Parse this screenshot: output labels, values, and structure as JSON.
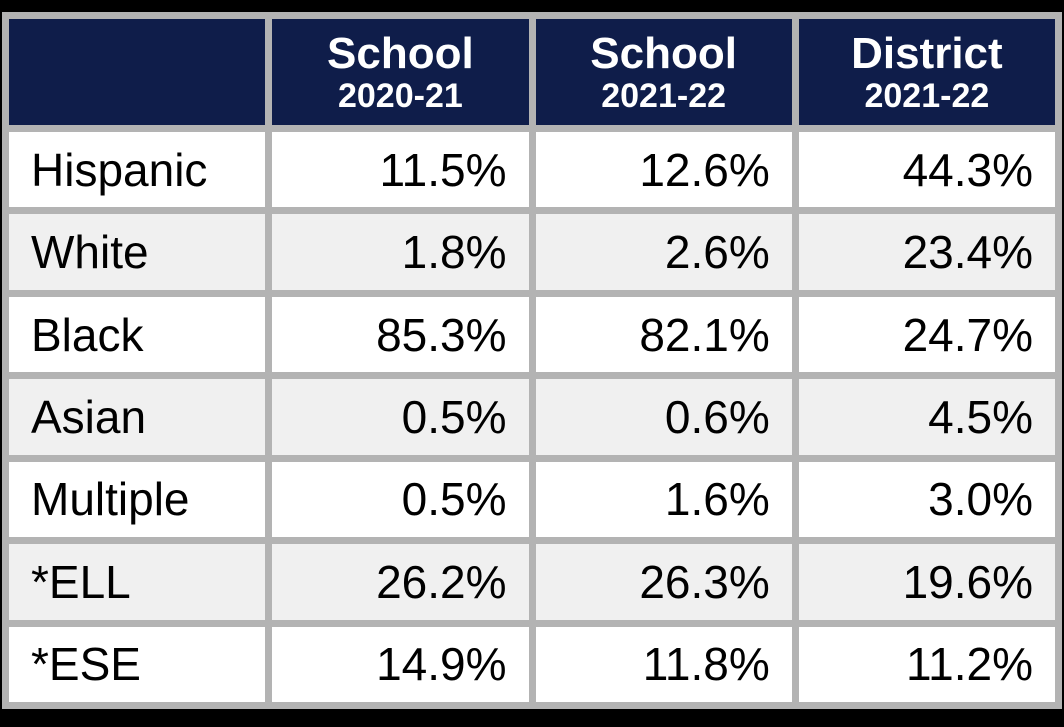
{
  "colors": {
    "frame": "#000000",
    "header_bg": "#0f1d4a",
    "header_text": "#ffffff",
    "border": "#b3b3b3",
    "row_bg": "#ffffff",
    "row_alt_bg": "#f0f0f0",
    "body_text": "#000000"
  },
  "table": {
    "columns": [
      {
        "title": "",
        "subtitle": ""
      },
      {
        "title": "School",
        "subtitle": "2020-21"
      },
      {
        "title": "School",
        "subtitle": "2021-22"
      },
      {
        "title": "District",
        "subtitle": "2021-22"
      }
    ],
    "rows": [
      {
        "label": "Hispanic",
        "values": [
          "11.5%",
          "12.6%",
          "44.3%"
        ]
      },
      {
        "label": "White",
        "values": [
          "1.8%",
          "2.6%",
          "23.4%"
        ]
      },
      {
        "label": "Black",
        "values": [
          "85.3%",
          "82.1%",
          "24.7%"
        ]
      },
      {
        "label": "Asian",
        "values": [
          "0.5%",
          "0.6%",
          "4.5%"
        ]
      },
      {
        "label": "Multiple",
        "values": [
          "0.5%",
          "1.6%",
          "3.0%"
        ]
      },
      {
        "label": "*ELL",
        "values": [
          "26.2%",
          "26.3%",
          "19.6%"
        ]
      },
      {
        "label": "*ESE",
        "values": [
          "14.9%",
          "11.8%",
          "11.2%"
        ]
      }
    ]
  },
  "chart_data": {
    "type": "table",
    "columns": [
      "",
      "School 2020-21",
      "School 2021-22",
      "District 2021-22"
    ],
    "categories": [
      "Hispanic",
      "White",
      "Black",
      "Asian",
      "Multiple",
      "*ELL",
      "*ESE"
    ],
    "series": [
      {
        "name": "School 2020-21",
        "values": [
          11.5,
          1.8,
          85.3,
          0.5,
          0.5,
          26.2,
          14.9
        ]
      },
      {
        "name": "School 2021-22",
        "values": [
          12.6,
          2.6,
          82.1,
          0.6,
          1.6,
          26.3,
          11.8
        ]
      },
      {
        "name": "District 2021-22",
        "values": [
          44.3,
          23.4,
          24.7,
          4.5,
          3.0,
          19.6,
          11.2
        ]
      }
    ],
    "unit": "%"
  }
}
